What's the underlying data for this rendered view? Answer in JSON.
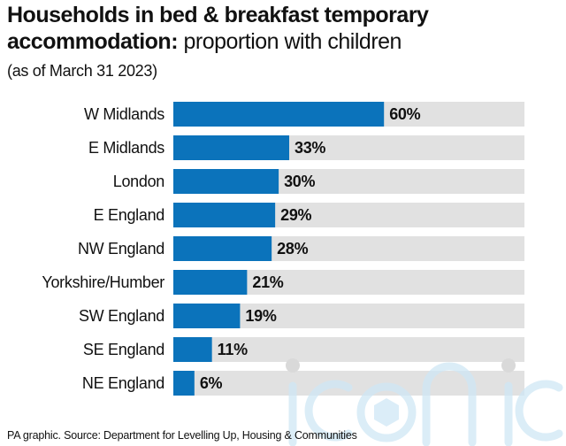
{
  "title_bold": "Households in bed & breakfast temporary accommodation:",
  "title_light": " proportion with children",
  "subtitle": "(as of March 31 2023)",
  "source": "PA graphic. Source: Department for Levelling Up, Housing & Communities",
  "watermark": "iconic",
  "colors": {
    "bar": "#0b73bb",
    "track": "#e1e1e1",
    "text": "#111111"
  },
  "chart_data": {
    "type": "bar",
    "orientation": "horizontal",
    "categories": [
      "W Midlands",
      "E Midlands",
      "London",
      "E England",
      "NW England",
      "Yorkshire/Humber",
      "SW England",
      "SE England",
      "NE England"
    ],
    "values": [
      60,
      33,
      30,
      29,
      28,
      21,
      19,
      11,
      6
    ],
    "value_labels": [
      "60%",
      "33%",
      "30%",
      "29%",
      "28%",
      "21%",
      "19%",
      "11%",
      "6%"
    ],
    "xlim": [
      0,
      100
    ],
    "unit": "%",
    "grid": false
  }
}
